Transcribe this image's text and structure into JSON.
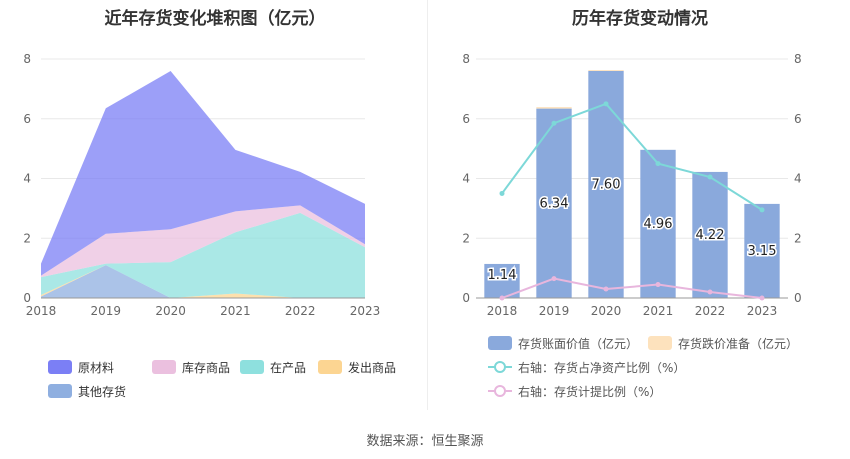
{
  "titles": {
    "left": "近年存货变化堆积图（亿元）",
    "right": "历年存货变动情况"
  },
  "source": "数据来源：恒生聚源",
  "colors": {
    "raw": "#7b7ff5",
    "stock": "#ebc0df",
    "wip": "#8ee0de",
    "shipped": "#fcd592",
    "other": "#8fafe0",
    "book": "#8aa9dc",
    "provision": "#fde2bd",
    "ratio_assets": "#7dd8d8",
    "ratio_provision": "#e8b6dd",
    "grid": "#e8e8e8",
    "axis_text": "#666666"
  },
  "chart_data": [
    {
      "type": "area",
      "title": "近年存货变化堆积图（亿元）",
      "x": [
        "2018",
        "2019",
        "2020",
        "2021",
        "2022",
        "2023"
      ],
      "ylim": [
        0,
        8
      ],
      "yticks": [
        0,
        2,
        4,
        6,
        8
      ],
      "stacked": true,
      "legend_position": "bottom",
      "series": [
        {
          "name": "其他存货",
          "color_key": "other",
          "values": [
            0.05,
            1.1,
            0.0,
            0.0,
            0.0,
            0.0
          ]
        },
        {
          "name": "发出商品",
          "color_key": "shipped",
          "values": [
            0.05,
            0.0,
            0.0,
            0.15,
            0.0,
            0.0
          ]
        },
        {
          "name": "在产品",
          "color_key": "wip",
          "values": [
            0.6,
            0.05,
            1.2,
            2.05,
            2.85,
            1.7
          ]
        },
        {
          "name": "库存商品",
          "color_key": "stock",
          "values": [
            0.05,
            1.0,
            1.1,
            0.7,
            0.25,
            0.1
          ]
        },
        {
          "name": "原材料",
          "color_key": "raw",
          "values": [
            0.4,
            4.2,
            5.3,
            2.06,
            1.12,
            1.35
          ]
        }
      ],
      "legend": [
        {
          "name": "原材料",
          "color_key": "raw"
        },
        {
          "name": "库存商品",
          "color_key": "stock"
        },
        {
          "name": "在产品",
          "color_key": "wip"
        },
        {
          "name": "发出商品",
          "color_key": "shipped"
        },
        {
          "name": "其他存货",
          "color_key": "other"
        }
      ]
    },
    {
      "type": "bar",
      "title": "历年存货变动情况",
      "x": [
        "2018",
        "2019",
        "2020",
        "2021",
        "2022",
        "2023"
      ],
      "ylim": [
        0,
        8
      ],
      "yticks": [
        0,
        2,
        4,
        6,
        8
      ],
      "y2lim": [
        0,
        8
      ],
      "y2ticks": [
        0,
        2,
        4,
        6,
        8
      ],
      "series": [
        {
          "name": "存货账面价值（亿元）",
          "type": "bar",
          "color_key": "book",
          "values": [
            1.14,
            6.34,
            7.6,
            4.96,
            4.22,
            3.15
          ],
          "labels": [
            "1.14",
            "6.34",
            "7.60",
            "4.96",
            "4.22",
            "3.15"
          ]
        },
        {
          "name": "存货跌价准备（亿元）",
          "type": "bar",
          "color_key": "provision",
          "values": [
            0.0,
            0.05,
            0.03,
            0.0,
            0.0,
            0.0
          ]
        },
        {
          "name": "右轴：存货占净资产比例（%）",
          "type": "line",
          "axis": "right",
          "color_key": "ratio_assets",
          "values": [
            3.5,
            5.85,
            6.5,
            4.5,
            4.05,
            2.95
          ]
        },
        {
          "name": "右轴：存货计提比例（%）",
          "type": "line",
          "axis": "right",
          "color_key": "ratio_provision",
          "values": [
            0.0,
            0.65,
            0.3,
            0.45,
            0.2,
            0.0
          ]
        }
      ]
    }
  ]
}
